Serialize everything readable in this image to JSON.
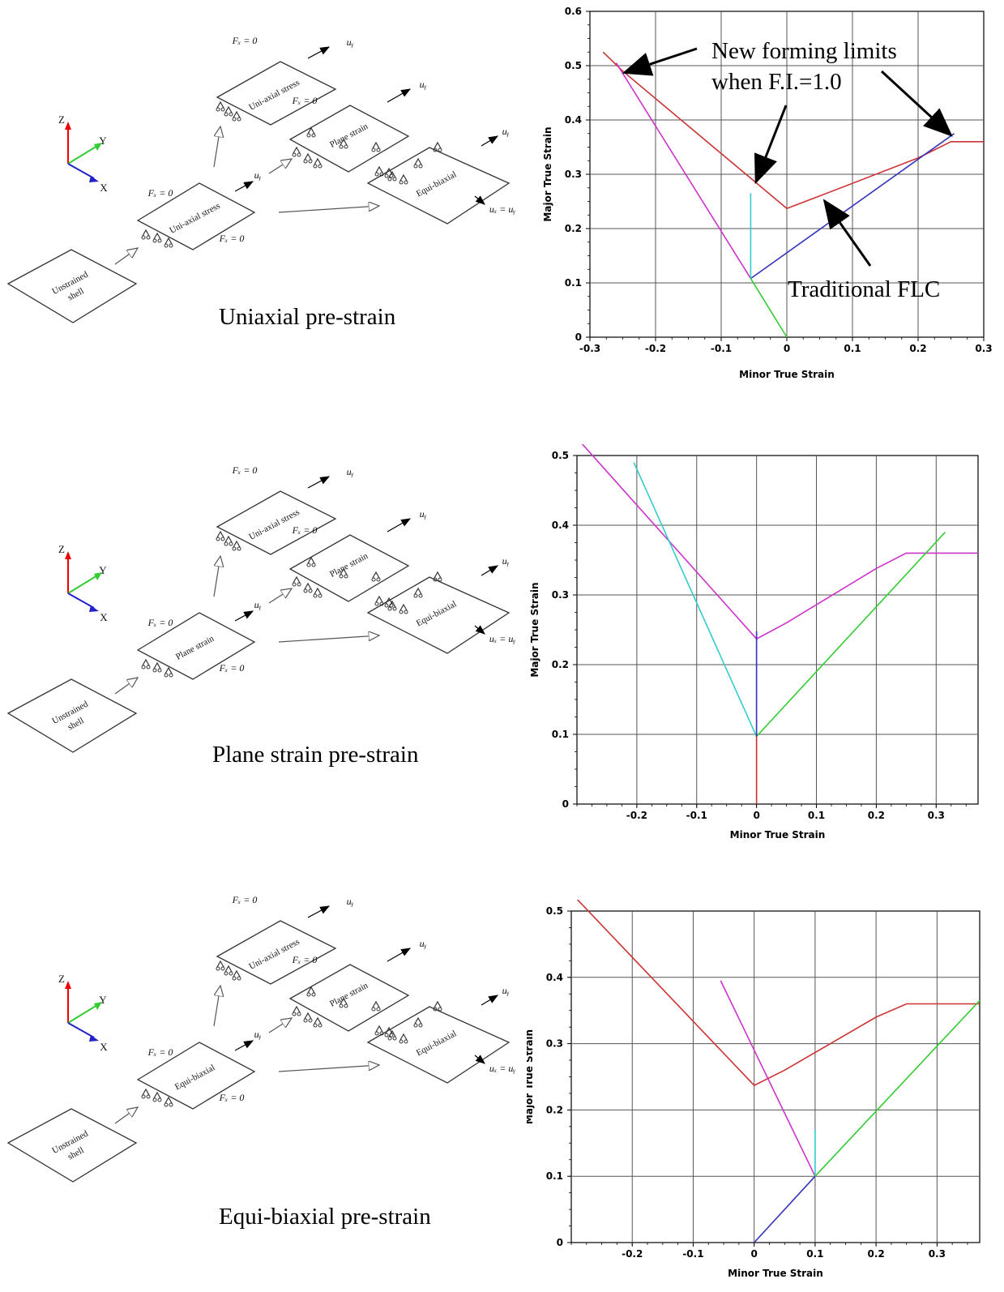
{
  "rows": [
    {
      "caption": "Uniaxial pre-strain",
      "diagram": {
        "axes": {
          "z": "Z",
          "y": "Y",
          "x": "X"
        },
        "plates": {
          "unstrained": [
            "Unstrained",
            "shell"
          ],
          "pre": "Uni-axial stress",
          "uni": "Uni-axial stress",
          "plane": "Plane strain",
          "equi": "Equi-biaxial"
        },
        "labels": {
          "fx0": "Fₓ = 0",
          "uy": "uᵧ",
          "uxuy": "uₓ = uᵧ"
        }
      }
    },
    {
      "caption": "Plane strain pre-strain",
      "diagram": {
        "axes": {
          "z": "Z",
          "y": "Y",
          "x": "X"
        },
        "plates": {
          "unstrained": [
            "Unstrained",
            "shell"
          ],
          "pre": "Plane strain",
          "uni": "Uni-axial stress",
          "plane": "Plane strain",
          "equi": "Equi-biaxial"
        },
        "labels": {
          "fx0": "Fₓ = 0",
          "uy": "uᵧ",
          "uxuy": "uₓ = uᵧ"
        }
      }
    },
    {
      "caption": "Equi-biaxial pre-strain",
      "diagram": {
        "axes": {
          "z": "Z",
          "y": "Y",
          "x": "X"
        },
        "plates": {
          "unstrained": [
            "Unstrained",
            "shell"
          ],
          "pre": "Equi-biaxial",
          "uni": "Uni-axial stress",
          "plane": "Plane strain",
          "equi": "Equi-biaxial"
        },
        "labels": {
          "fx0": "Fₓ = 0",
          "uy": "uᵧ",
          "uxuy": "uₓ = uᵧ"
        }
      }
    }
  ],
  "annotations": {
    "new_limits_line1": "New forming limits",
    "new_limits_line2": "when F.I.=1.0",
    "traditional_flc": "Traditional FLC"
  },
  "colors": {
    "red": "#cc3333",
    "magenta": "#cc33cc",
    "blue": "#3333bb",
    "cyan": "#33cccc",
    "green": "#33cc33"
  },
  "chart_data": [
    {
      "type": "line",
      "xlabel": "Minor True Strain",
      "ylabel": "Major True Strain",
      "xlim": [
        -0.3,
        0.3
      ],
      "ylim": [
        0,
        0.6
      ],
      "xticks": [
        "-0.3",
        "-0.2",
        "-0.1",
        "0",
        "0.1",
        "0.2",
        "0.3"
      ],
      "yticks": [
        "0",
        "0.1",
        "0.2",
        "0.3",
        "0.4",
        "0.5",
        "0.6"
      ],
      "grid": true,
      "series": [
        {
          "color": "red",
          "points": [
            [
              -0.28,
              0.525
            ],
            [
              -0.25,
              0.49
            ],
            [
              0,
              0.237
            ],
            [
              0.05,
              0.26
            ],
            [
              0.2,
              0.33
            ],
            [
              0.25,
              0.36
            ],
            [
              0.3,
              0.36
            ]
          ]
        },
        {
          "color": "magenta",
          "points": [
            [
              -0.26,
              0.505
            ],
            [
              -0.055,
              0.108
            ]
          ]
        },
        {
          "color": "blue",
          "points": [
            [
              -0.055,
              0.108
            ],
            [
              0.255,
              0.375
            ]
          ]
        },
        {
          "color": "cyan",
          "points": [
            [
              -0.055,
              0.108
            ],
            [
              -0.055,
              0.265
            ]
          ]
        },
        {
          "color": "green",
          "points": [
            [
              -0.055,
              0.108
            ],
            [
              0,
              0
            ]
          ]
        }
      ]
    },
    {
      "type": "line",
      "xlabel": "Minor True Strain",
      "ylabel": "Major True Strain",
      "xlim": [
        -0.3,
        0.37
      ],
      "ylim": [
        0,
        0.5
      ],
      "xticks": [
        "-0.2",
        "-0.1",
        "0",
        "0.1",
        "0.2",
        "0.3"
      ],
      "yticks": [
        "0",
        "0.1",
        "0.2",
        "0.3",
        "0.4",
        "0.5"
      ],
      "grid": true,
      "series": [
        {
          "color": "magenta",
          "points": [
            [
              -0.3,
              0.525
            ],
            [
              0,
              0.237
            ],
            [
              0.05,
              0.26
            ],
            [
              0.2,
              0.338
            ],
            [
              0.25,
              0.36
            ],
            [
              0.37,
              0.36
            ]
          ]
        },
        {
          "color": "cyan",
          "points": [
            [
              -0.205,
              0.49
            ],
            [
              0,
              0.097
            ]
          ]
        },
        {
          "color": "green",
          "points": [
            [
              0,
              0.097
            ],
            [
              0.315,
              0.39
            ]
          ]
        },
        {
          "color": "blue",
          "points": [
            [
              0,
              0.097
            ],
            [
              0,
              0.248
            ]
          ]
        },
        {
          "color": "red",
          "points": [
            [
              0,
              0
            ],
            [
              0,
              0.097
            ]
          ]
        }
      ]
    },
    {
      "type": "line",
      "xlabel": "Minor True Strain",
      "ylabel": "Major True Strain",
      "xlim": [
        -0.3,
        0.37
      ],
      "ylim": [
        0,
        0.5
      ],
      "xticks": [
        "-0.2",
        "-0.1",
        "0",
        "0.1",
        "0.2",
        "0.3"
      ],
      "yticks": [
        "0",
        "0.1",
        "0.2",
        "0.3",
        "0.4",
        "0.5"
      ],
      "grid": true,
      "series": [
        {
          "color": "red",
          "points": [
            [
              -0.3,
              0.527
            ],
            [
              0,
              0.237
            ],
            [
              0.05,
              0.26
            ],
            [
              0.2,
              0.34
            ],
            [
              0.25,
              0.36
            ],
            [
              0.37,
              0.36
            ]
          ]
        },
        {
          "color": "magenta",
          "points": [
            [
              -0.055,
              0.395
            ],
            [
              0.1,
              0.1
            ]
          ]
        },
        {
          "color": "blue",
          "points": [
            [
              0,
              0
            ],
            [
              0.1,
              0.1
            ]
          ]
        },
        {
          "color": "cyan",
          "points": [
            [
              0.1,
              0.1
            ],
            [
              0.1,
              0.17
            ]
          ]
        },
        {
          "color": "green",
          "points": [
            [
              0.1,
              0.1
            ],
            [
              0.37,
              0.365
            ]
          ]
        }
      ]
    }
  ]
}
